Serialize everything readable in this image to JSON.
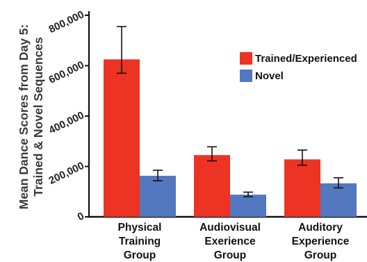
{
  "chart_data": {
    "type": "bar",
    "title": "",
    "ylabel": "Mean Dance Scores from Day 5:\nTrained & Novel Sequences",
    "xlabel": "",
    "ylim": [
      0,
      830000
    ],
    "yticks": [
      0,
      200000,
      400000,
      600000,
      800000
    ],
    "ytick_labels": [
      "0",
      "200,000",
      "400,000",
      "600,000",
      "800,000"
    ],
    "categories": [
      [
        "Physical",
        "Training",
        "Group"
      ],
      [
        "Audiovisual",
        "Exerience",
        "Group"
      ],
      [
        "Auditory",
        "Experience",
        "Group"
      ]
    ],
    "series": [
      {
        "name": "Trained/Experienced",
        "color": "#ed3323",
        "values": [
          625000,
          245000,
          228000
        ],
        "error": [
          [
            570000,
            755000
          ],
          [
            222000,
            278000
          ],
          [
            205000,
            265000
          ]
        ]
      },
      {
        "name": "Novel",
        "color": "#5478bf",
        "values": [
          163000,
          88000,
          133000
        ],
        "error": [
          [
            143000,
            185000
          ],
          [
            80000,
            98000
          ],
          [
            115000,
            155000
          ]
        ]
      }
    ],
    "grid": false,
    "legend": "top-right"
  }
}
